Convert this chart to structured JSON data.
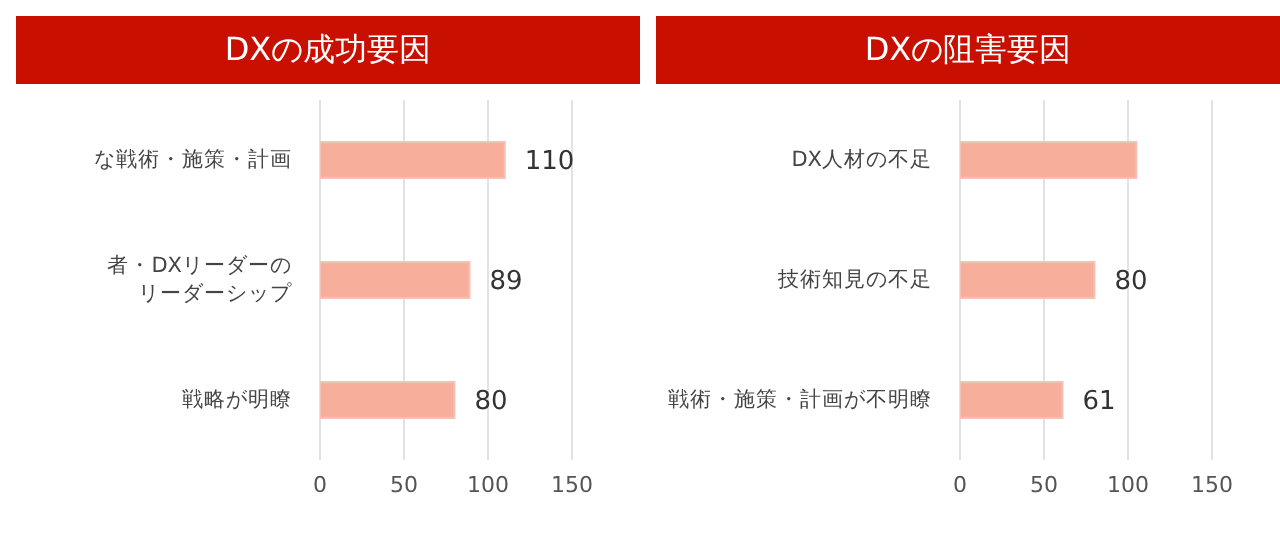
{
  "chart_data": [
    {
      "type": "bar",
      "orientation": "horizontal",
      "title": "DXの成功要因",
      "categories": [
        "な戦術・施策・計画",
        "者・DXリーダーのリーダーシップ",
        "戦略が明瞭"
      ],
      "values": [
        110,
        89,
        80
      ],
      "color": "#f7af9c",
      "xlim": [
        0,
        150
      ],
      "xticks": [
        0,
        50,
        100,
        150
      ],
      "grid": "x",
      "data_labels": true
    },
    {
      "type": "bar",
      "orientation": "horizontal",
      "title": "DXの阻害要因",
      "categories": [
        "DX人材の不足",
        "技術知見の不足",
        "戦術・施策・計画が不明瞭"
      ],
      "values": [
        105,
        80,
        61
      ],
      "value_labels": [
        null,
        "80",
        "61"
      ],
      "color": "#f7af9c",
      "xlim": [
        0,
        150
      ],
      "xticks": [
        0,
        50,
        100,
        150
      ],
      "grid": "x"
    }
  ]
}
